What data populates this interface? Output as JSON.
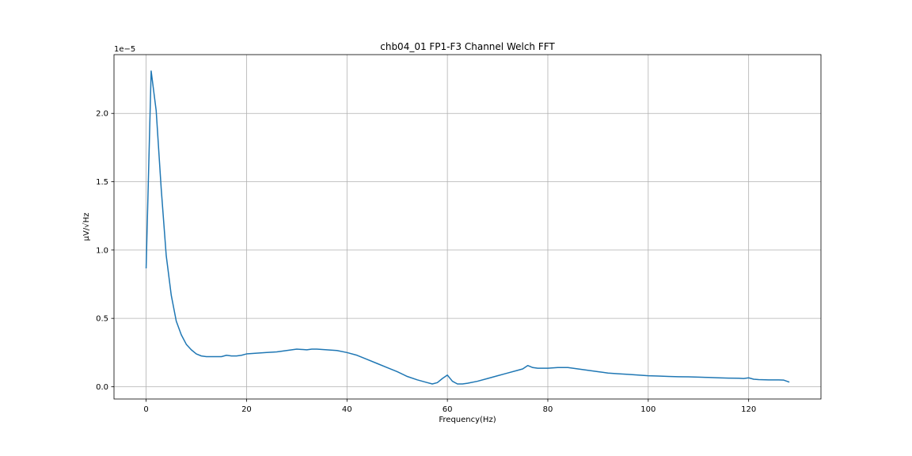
{
  "chart_data": {
    "type": "line",
    "title": "chb04_01 FP1-F3 Channel Welch FFT",
    "xlabel": "Frequency(Hz)",
    "ylabel": "μV/√Hz",
    "y_offset_label": "1e−5",
    "xlim": [
      -6.4,
      134.4
    ],
    "ylim": [
      -0.09,
      2.43
    ],
    "y_scale_factor": 1e-05,
    "grid": true,
    "x_ticks": [
      0,
      20,
      40,
      60,
      80,
      100,
      120
    ],
    "y_ticks": [
      0.0,
      0.5,
      1.0,
      1.5,
      2.0
    ],
    "x_tick_labels": [
      "0",
      "20",
      "40",
      "60",
      "80",
      "100",
      "120"
    ],
    "y_tick_labels": [
      "0.0",
      "0.5",
      "1.0",
      "1.5",
      "2.0"
    ],
    "series": [
      {
        "color": "#1f77b4",
        "x": [
          0,
          1,
          2,
          3,
          4,
          5,
          6,
          7,
          8,
          9,
          10,
          11,
          12,
          13,
          14,
          15,
          16,
          17,
          18,
          19,
          20,
          22,
          24,
          26,
          28,
          30,
          32,
          33,
          34,
          36,
          38,
          40,
          42,
          44,
          46,
          48,
          50,
          52,
          54,
          56,
          57,
          58,
          59,
          60,
          61,
          62,
          63,
          64,
          66,
          68,
          70,
          72,
          74,
          75,
          76,
          77,
          78,
          80,
          82,
          84,
          86,
          88,
          90,
          92,
          94,
          96,
          98,
          100,
          102,
          104,
          106,
          108,
          110,
          112,
          114,
          116,
          118,
          119,
          120,
          121,
          122,
          124,
          126,
          127,
          128
        ],
        "y": [
          0.87,
          2.31,
          2.02,
          1.45,
          0.96,
          0.67,
          0.48,
          0.38,
          0.31,
          0.27,
          0.24,
          0.225,
          0.22,
          0.22,
          0.22,
          0.22,
          0.23,
          0.225,
          0.225,
          0.23,
          0.24,
          0.245,
          0.25,
          0.255,
          0.265,
          0.275,
          0.27,
          0.275,
          0.275,
          0.27,
          0.265,
          0.25,
          0.23,
          0.2,
          0.17,
          0.14,
          0.11,
          0.075,
          0.05,
          0.03,
          0.02,
          0.03,
          0.06,
          0.085,
          0.04,
          0.02,
          0.02,
          0.025,
          0.04,
          0.06,
          0.08,
          0.1,
          0.12,
          0.13,
          0.155,
          0.14,
          0.135,
          0.135,
          0.14,
          0.14,
          0.13,
          0.12,
          0.11,
          0.1,
          0.095,
          0.09,
          0.085,
          0.08,
          0.078,
          0.075,
          0.073,
          0.072,
          0.07,
          0.068,
          0.065,
          0.063,
          0.062,
          0.06,
          0.065,
          0.055,
          0.052,
          0.05,
          0.05,
          0.048,
          0.035
        ]
      }
    ]
  }
}
